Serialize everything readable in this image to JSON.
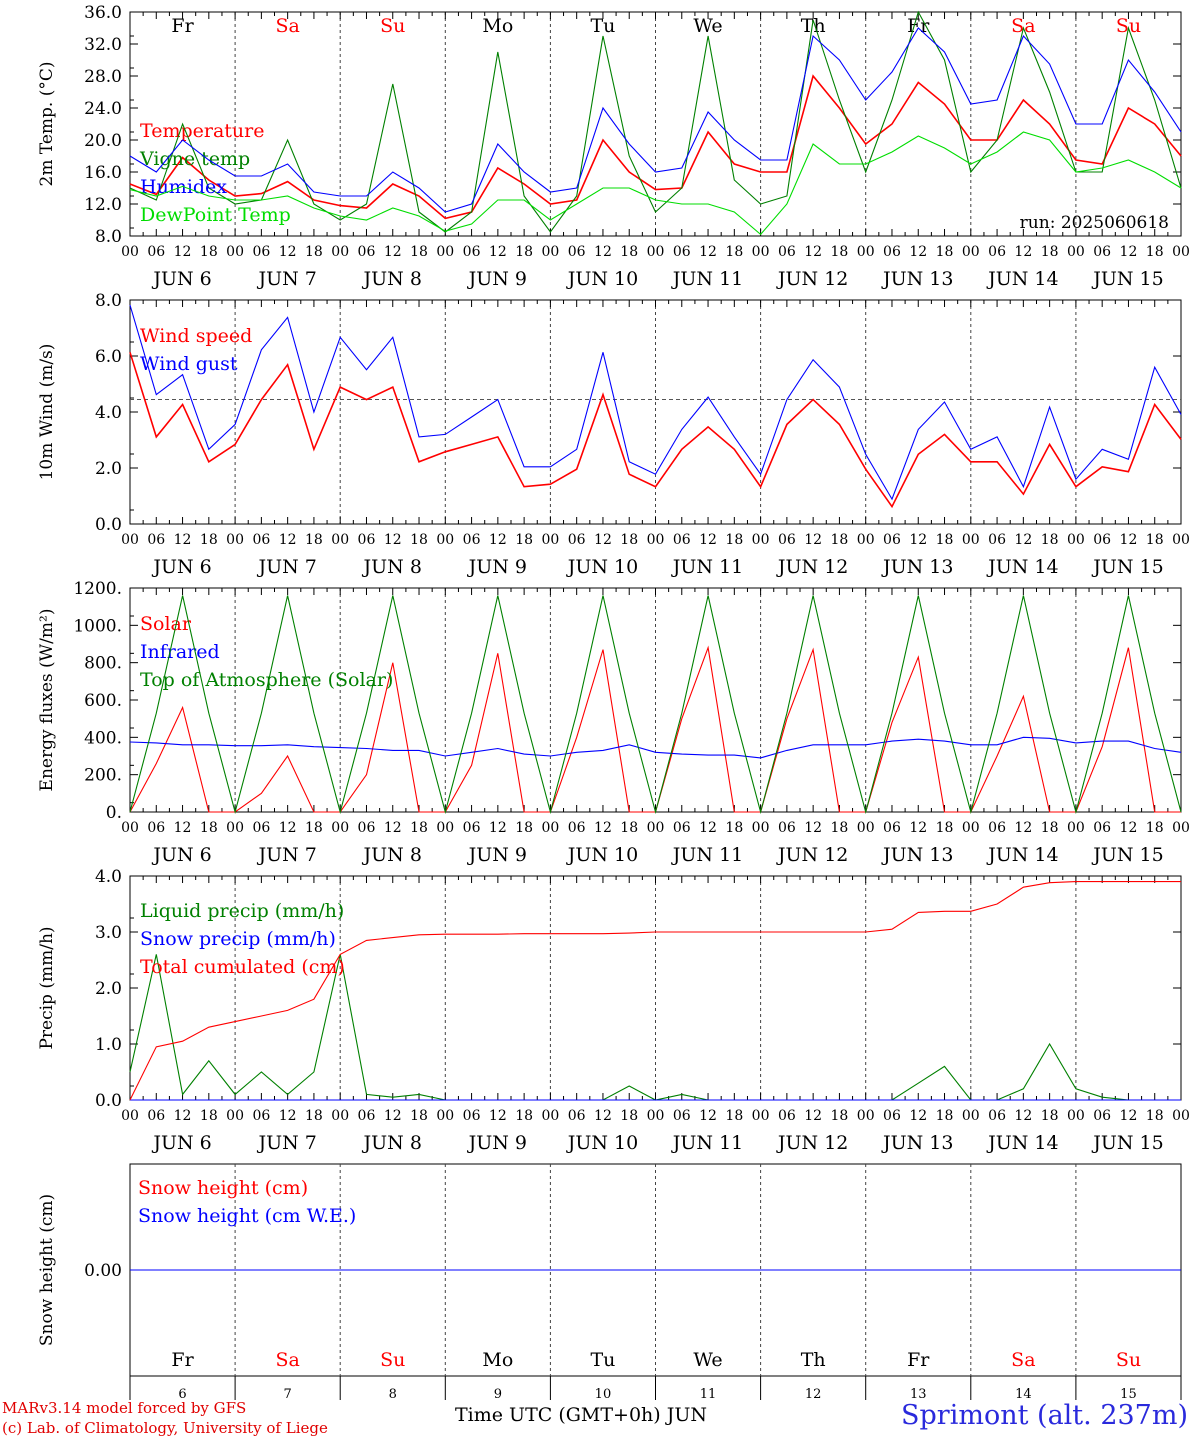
{
  "footer": {
    "model_line": "MARv3.14 model forced by GFS",
    "copyright_line": "(c) Lab. of Climatology, University of Liege",
    "x_axis_title": "Time UTC (GMT+0h) JUN",
    "station": "Sprimont (alt. 237m)"
  },
  "colors": {
    "red": "#ff0000",
    "green": "#008000",
    "blue": "#0000ff",
    "lightgreen": "#00dd00",
    "weekend": "#ff0000",
    "station": "#2a2adc"
  },
  "chart_data": [
    {
      "type": "line",
      "ylabel": "2m Temp. (°C)",
      "ylim": [
        8.0,
        36.0
      ],
      "yticks": [
        "8.0",
        "12.0",
        "16.0",
        "20.0",
        "24.0",
        "28.0",
        "32.0",
        "36.0"
      ],
      "annotation": "run: 2025060618",
      "day_abbrevs": [
        "Fr",
        "Sa",
        "Su",
        "Mo",
        "Tu",
        "We",
        "Th",
        "Fr",
        "Sa",
        "Su"
      ],
      "weekend_flags": [
        false,
        true,
        true,
        false,
        false,
        false,
        false,
        false,
        true,
        true
      ],
      "hour_labels": [
        "00",
        "06",
        "12",
        "18"
      ],
      "day_labels": [
        "JUN 6",
        "JUN 7",
        "JUN 8",
        "JUN 9",
        "JUN 10",
        "JUN 11",
        "JUN 12",
        "JUN 13",
        "JUN 14",
        "JUN 15"
      ],
      "x_hours": [
        0,
        6,
        12,
        18,
        24,
        30,
        36,
        42,
        48,
        54,
        60,
        66,
        72,
        78,
        84,
        90,
        96,
        102,
        108,
        114,
        120,
        126,
        132,
        138,
        144,
        150,
        156,
        162,
        168,
        174,
        180,
        186,
        192,
        198,
        204,
        210,
        216,
        222,
        228,
        234,
        240
      ],
      "series": [
        {
          "name": "Temperature",
          "color": "red",
          "values": [
            14.5,
            13.2,
            17.8,
            15.0,
            13.0,
            13.3,
            14.8,
            12.5,
            11.8,
            11.5,
            14.5,
            13.0,
            10.2,
            11.0,
            16.5,
            14.5,
            12.0,
            12.5,
            20.0,
            16.0,
            13.8,
            14.0,
            21.0,
            17.0,
            16.0,
            16.0,
            28.0,
            24.0,
            19.5,
            22.0,
            27.2,
            24.5,
            20.0,
            20.0,
            25.0,
            22.0,
            17.5,
            17.0,
            24.0,
            22.0,
            18.0
          ]
        },
        {
          "name": "Vigne temp",
          "color": "green",
          "values": [
            14.0,
            12.5,
            22.0,
            14.0,
            12.0,
            12.5,
            20.0,
            12.0,
            10.0,
            12.0,
            27.0,
            11.0,
            8.5,
            11.0,
            31.0,
            13.0,
            8.5,
            13.0,
            33.0,
            18.0,
            11.0,
            14.0,
            33.0,
            15.0,
            12.0,
            13.0,
            35.0,
            25.0,
            16.0,
            25.0,
            36.0,
            30.0,
            16.0,
            20.0,
            34.0,
            26.0,
            16.0,
            16.0,
            34.0,
            25.0,
            14.0
          ]
        },
        {
          "name": "Humidex",
          "color": "blue",
          "values": [
            18.0,
            16.0,
            20.0,
            17.5,
            15.5,
            15.5,
            17.0,
            13.5,
            13.0,
            13.0,
            16.0,
            14.0,
            11.0,
            12.0,
            19.5,
            16.0,
            13.5,
            14.0,
            24.0,
            19.5,
            16.0,
            16.5,
            23.5,
            20.0,
            17.5,
            17.5,
            33.0,
            30.0,
            25.0,
            28.5,
            34.0,
            31.0,
            24.5,
            25.0,
            33.0,
            29.5,
            22.0,
            22.0,
            30.0,
            26.0,
            21.0
          ]
        },
        {
          "name": "DewPoint Temp",
          "color": "lightgreen",
          "values": [
            13.8,
            13.0,
            14.2,
            13.0,
            12.5,
            12.5,
            13.0,
            11.5,
            10.5,
            10.0,
            11.5,
            10.5,
            8.6,
            9.5,
            12.5,
            12.5,
            10.0,
            12.0,
            14.0,
            14.0,
            12.5,
            12.0,
            12.0,
            11.0,
            8.2,
            12.0,
            19.5,
            17.0,
            17.0,
            18.5,
            20.5,
            19.0,
            17.0,
            18.5,
            21.0,
            20.0,
            16.0,
            16.5,
            17.5,
            16.0,
            14.0
          ]
        }
      ]
    },
    {
      "type": "line",
      "ylabel": "10m Wind (m/s)",
      "ylim": [
        0.0,
        9.0
      ],
      "yticks": [
        "0.0",
        "2.0",
        "4.0",
        "6.0",
        "8.0"
      ],
      "reference_line": 5.0,
      "hour_labels": [
        "00",
        "06",
        "12",
        "18"
      ],
      "day_labels": [
        "JUN 6",
        "JUN 7",
        "JUN 8",
        "JUN 9",
        "JUN 10",
        "JUN 11",
        "JUN 12",
        "JUN 13",
        "JUN 14",
        "JUN 15"
      ],
      "x_hours": [
        0,
        6,
        12,
        18,
        24,
        30,
        36,
        42,
        48,
        54,
        60,
        66,
        72,
        78,
        84,
        90,
        96,
        102,
        108,
        114,
        120,
        126,
        132,
        138,
        144,
        150,
        156,
        162,
        168,
        174,
        180,
        186,
        192,
        198,
        204,
        210,
        216,
        222,
        228,
        234,
        240
      ],
      "series": [
        {
          "name": "Wind speed",
          "color": "red",
          "values": [
            6.9,
            3.5,
            4.8,
            2.5,
            3.2,
            5.0,
            6.4,
            3.0,
            5.5,
            5.0,
            5.5,
            2.5,
            2.9,
            3.2,
            3.5,
            1.5,
            1.6,
            2.2,
            5.2,
            2.0,
            1.5,
            3.0,
            3.9,
            3.0,
            1.5,
            4.0,
            5.0,
            4.0,
            2.2,
            0.7,
            2.8,
            3.6,
            2.5,
            2.5,
            1.2,
            3.2,
            1.5,
            2.3,
            2.1,
            4.8,
            3.4
          ]
        },
        {
          "name": "Wind gust",
          "color": "blue",
          "values": [
            8.8,
            5.2,
            6.0,
            3.0,
            4.0,
            7.0,
            8.3,
            4.5,
            7.5,
            6.2,
            7.5,
            3.5,
            3.6,
            4.3,
            5.0,
            2.3,
            2.3,
            3.0,
            6.9,
            2.5,
            2.0,
            3.8,
            5.1,
            3.5,
            2.0,
            5.0,
            6.6,
            5.5,
            2.8,
            1.0,
            3.8,
            4.9,
            3.0,
            3.5,
            1.5,
            4.7,
            1.8,
            3.0,
            2.6,
            6.3,
            4.4
          ]
        }
      ]
    },
    {
      "type": "line",
      "ylabel": "Energy fluxes (W/m²)",
      "ylim": [
        0,
        1200
      ],
      "yticks": [
        "0.",
        "200.",
        "400.",
        "600.",
        "800.",
        "1000.",
        "1200."
      ],
      "hour_labels": [
        "00",
        "06",
        "12",
        "18"
      ],
      "day_labels": [
        "JUN 6",
        "JUN 7",
        "JUN 8",
        "JUN 9",
        "JUN 10",
        "JUN 11",
        "JUN 12",
        "JUN 13",
        "JUN 14",
        "JUN 15"
      ],
      "x_hours": [
        0,
        6,
        12,
        18,
        24,
        30,
        36,
        42,
        48,
        54,
        60,
        66,
        72,
        78,
        84,
        90,
        96,
        102,
        108,
        114,
        120,
        126,
        132,
        138,
        144,
        150,
        156,
        162,
        168,
        174,
        180,
        186,
        192,
        198,
        204,
        210,
        216,
        222,
        228,
        234,
        240
      ],
      "series": [
        {
          "name": "Solar",
          "color": "red",
          "values": [
            0,
            260,
            560,
            0,
            0,
            100,
            300,
            0,
            0,
            200,
            800,
            0,
            0,
            250,
            850,
            0,
            0,
            400,
            870,
            0,
            0,
            500,
            880,
            0,
            0,
            500,
            870,
            0,
            0,
            480,
            830,
            0,
            0,
            300,
            620,
            0,
            0,
            350,
            880,
            0,
            0
          ]
        },
        {
          "name": "Infrared",
          "color": "blue",
          "values": [
            375,
            370,
            360,
            360,
            355,
            355,
            360,
            350,
            345,
            340,
            330,
            330,
            300,
            320,
            340,
            310,
            300,
            320,
            330,
            360,
            320,
            310,
            305,
            305,
            290,
            330,
            360,
            360,
            360,
            380,
            390,
            380,
            360,
            360,
            400,
            395,
            370,
            380,
            380,
            340,
            320
          ]
        },
        {
          "name": "Top of Atmosphere (Solar)",
          "color": "green",
          "values": [
            0,
            530,
            1160,
            530,
            0,
            530,
            1160,
            530,
            0,
            530,
            1160,
            530,
            0,
            530,
            1160,
            530,
            0,
            530,
            1160,
            530,
            0,
            530,
            1160,
            530,
            0,
            530,
            1160,
            530,
            0,
            530,
            1160,
            530,
            0,
            530,
            1160,
            530,
            0,
            530,
            1160,
            530,
            0
          ]
        }
      ]
    },
    {
      "type": "line",
      "ylabel": "Precip (mm/h)",
      "ylim": [
        0.0,
        4.0
      ],
      "yticks": [
        "0.0",
        "1.0",
        "2.0",
        "3.0",
        "4.0"
      ],
      "hour_labels": [
        "00",
        "06",
        "12",
        "18"
      ],
      "day_labels": [
        "JUN 6",
        "JUN 7",
        "JUN 8",
        "JUN 9",
        "JUN 10",
        "JUN 11",
        "JUN 12",
        "JUN 13",
        "JUN 14",
        "JUN 15"
      ],
      "x_hours": [
        0,
        6,
        12,
        18,
        24,
        30,
        36,
        42,
        48,
        54,
        60,
        66,
        72,
        78,
        84,
        90,
        96,
        102,
        108,
        114,
        120,
        126,
        132,
        138,
        144,
        150,
        156,
        162,
        168,
        174,
        180,
        186,
        192,
        198,
        204,
        210,
        216,
        222,
        228,
        234,
        240
      ],
      "series": [
        {
          "name": "Liquid precip (mm/h)",
          "color": "green",
          "values": [
            0.5,
            2.6,
            0.1,
            0.7,
            0.1,
            0.5,
            0.1,
            0.5,
            2.6,
            0.1,
            0.05,
            0.1,
            0.0,
            0.0,
            0.0,
            0.0,
            0.0,
            0.0,
            0.0,
            0.25,
            0.0,
            0.1,
            0.0,
            0.0,
            0.0,
            0.0,
            0.0,
            0.0,
            0.0,
            0.0,
            0.3,
            0.6,
            0.0,
            0.0,
            0.2,
            1.0,
            0.2,
            0.05,
            0.0,
            0.0,
            0.0
          ]
        },
        {
          "name": "Snow precip (mm/h)",
          "color": "blue",
          "values": [
            0,
            0,
            0,
            0,
            0,
            0,
            0,
            0,
            0,
            0,
            0,
            0,
            0,
            0,
            0,
            0,
            0,
            0,
            0,
            0,
            0,
            0,
            0,
            0,
            0,
            0,
            0,
            0,
            0,
            0,
            0,
            0,
            0,
            0,
            0,
            0,
            0,
            0,
            0,
            0,
            0
          ]
        },
        {
          "name": "Total cumulated (cm)",
          "color": "red",
          "values": [
            0.0,
            0.95,
            1.05,
            1.3,
            1.4,
            1.5,
            1.6,
            1.8,
            2.6,
            2.85,
            2.9,
            2.95,
            2.96,
            2.96,
            2.96,
            2.97,
            2.97,
            2.97,
            2.97,
            2.98,
            3.0,
            3.0,
            3.0,
            3.0,
            3.0,
            3.0,
            3.0,
            3.0,
            3.0,
            3.05,
            3.35,
            3.37,
            3.37,
            3.5,
            3.8,
            3.88,
            3.9,
            3.9,
            3.9,
            3.9,
            3.9
          ]
        }
      ]
    },
    {
      "type": "line",
      "ylabel": "Snow height (cm)",
      "yticks": [
        "0.00"
      ],
      "day_abbrevs": [
        "Fr",
        "Sa",
        "Su",
        "Mo",
        "Tu",
        "We",
        "Th",
        "Fr",
        "Sa",
        "Su"
      ],
      "weekend_flags": [
        false,
        true,
        true,
        false,
        false,
        false,
        false,
        false,
        true,
        true
      ],
      "day_numbers": [
        "6",
        "7",
        "8",
        "9",
        "10",
        "11",
        "12",
        "13",
        "14",
        "15"
      ],
      "x_hours": [
        0,
        240
      ],
      "series": [
        {
          "name": "Snow height (cm)",
          "color": "red",
          "values": [
            0,
            0
          ]
        },
        {
          "name": "Snow height (cm W.E.)",
          "color": "blue",
          "values": [
            0,
            0
          ]
        }
      ]
    }
  ]
}
